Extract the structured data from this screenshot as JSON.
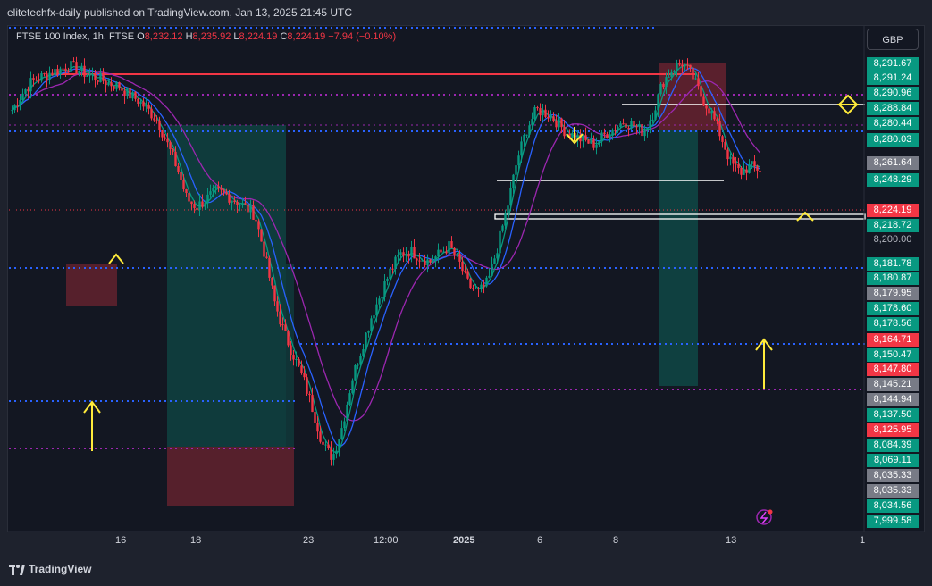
{
  "header": {
    "publish_text": "elitetechfx-daily published on TradingView.com, Jan 13, 2025 21:45 UTC"
  },
  "symbol": {
    "name": "FTSE 100 Index, 1h, FTSE",
    "o_label": "O",
    "o": "8,232.12",
    "h_label": "H",
    "h": "8,235.92",
    "l_label": "L",
    "l": "8,224.19",
    "c_label": "C",
    "c": "8,224.19",
    "change": "−7.94 (−0.10%)"
  },
  "currency": "GBP",
  "footer": {
    "brand": "TradingView"
  },
  "colors": {
    "up": "#089981",
    "down": "#f23645",
    "background": "#131722",
    "ma_fast": "#2962ff",
    "ma_slow": "#9c27b0",
    "arrows": "#ffeb3b"
  },
  "chart_data": {
    "type": "candlestick",
    "x_tick_labels": [
      "16",
      "18",
      "23",
      "12:00",
      "2025",
      "6",
      "8",
      "13",
      "1"
    ],
    "price_labels": [
      {
        "text": "8,291.67",
        "color": "#089981"
      },
      {
        "text": "8,291.24",
        "color": "#089981"
      },
      {
        "text": "8,290.96",
        "color": "#089981"
      },
      {
        "text": "8,288.84",
        "color": "#089981"
      },
      {
        "text": "8,280.44",
        "color": "#089981"
      },
      {
        "text": "8,280.03",
        "color": "#089981"
      },
      {
        "text": "8,261.64",
        "color": "#787b86"
      },
      {
        "text": "8,248.29",
        "color": "#089981"
      },
      {
        "text": "8,224.19",
        "color": "#f23645"
      },
      {
        "text": "8,218.72",
        "color": "#089981"
      },
      {
        "text": "8,200.00",
        "color": "none"
      },
      {
        "text": "8,181.78",
        "color": "#089981"
      },
      {
        "text": "8,180.87",
        "color": "#089981"
      },
      {
        "text": "8,179.95",
        "color": "#787b86"
      },
      {
        "text": "8,178.60",
        "color": "#089981"
      },
      {
        "text": "8,178.56",
        "color": "#089981"
      },
      {
        "text": "8,164.71",
        "color": "#f23645"
      },
      {
        "text": "8,150.47",
        "color": "#089981"
      },
      {
        "text": "8,147.80",
        "color": "#f23645"
      },
      {
        "text": "8,145.21",
        "color": "#787b86"
      },
      {
        "text": "8,144.94",
        "color": "#787b86"
      },
      {
        "text": "8,137.50",
        "color": "#089981"
      },
      {
        "text": "8,125.95",
        "color": "#f23645"
      },
      {
        "text": "8,084.39",
        "color": "#089981"
      },
      {
        "text": "8,069.11",
        "color": "#089981"
      },
      {
        "text": "8,035.33",
        "color": "#787b86"
      },
      {
        "text": "8,035.33",
        "color": "#787b86"
      },
      {
        "text": "8,034.56",
        "color": "#089981"
      },
      {
        "text": "7,999.58",
        "color": "#089981"
      }
    ],
    "approx_close_path": [
      8262,
      8272,
      8280,
      8283,
      8286,
      8288,
      8290,
      8287,
      8284,
      8282,
      8279,
      8277,
      8272,
      8268,
      8262,
      8255,
      8240,
      8225,
      8205,
      8200,
      8205,
      8210,
      8208,
      8204,
      8200,
      8195,
      8170,
      8140,
      8120,
      8105,
      8090,
      8070,
      8048,
      8040,
      8060,
      8090,
      8110,
      8130,
      8145,
      8160,
      8170,
      8172,
      8168,
      8165,
      8170,
      8175,
      8165,
      8150,
      8145,
      8152,
      8175,
      8200,
      8230,
      8250,
      8262,
      8260,
      8255,
      8248,
      8245,
      8242,
      8240,
      8246,
      8250,
      8255,
      8252,
      8248,
      8260,
      8280,
      8288,
      8292,
      8284,
      8270,
      8260,
      8245,
      8228,
      8222,
      8226,
      8224
    ]
  }
}
